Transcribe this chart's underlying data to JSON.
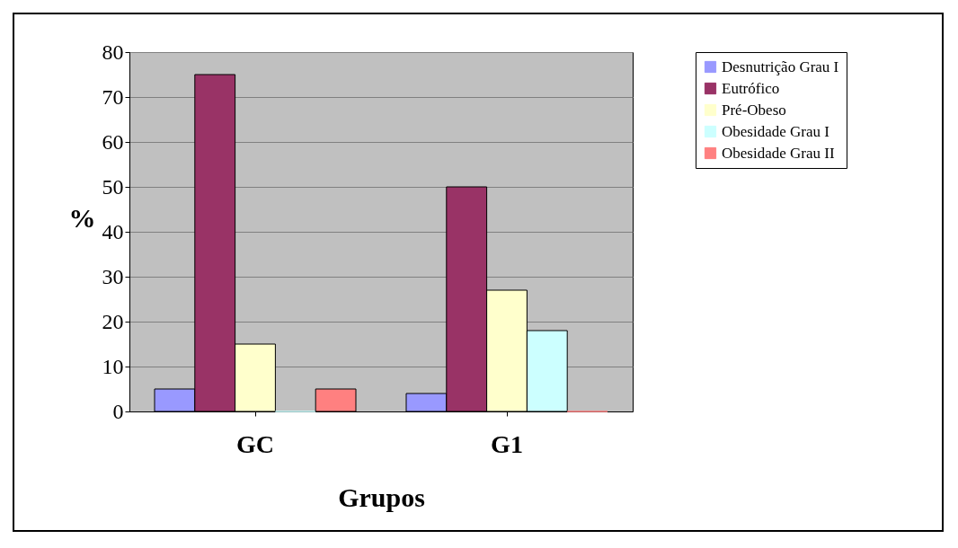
{
  "chart_data": {
    "type": "bar",
    "categories": [
      "GC",
      "G1"
    ],
    "xlabel": "Grupos",
    "ylabel": "%",
    "series": [
      {
        "name": "Desnutrição Grau I",
        "color": "#9999ff",
        "values": [
          5,
          4
        ]
      },
      {
        "name": "Eutrófico",
        "color": "#993366",
        "values": [
          75,
          50
        ]
      },
      {
        "name": "Pré-Obeso",
        "color": "#ffffcc",
        "values": [
          15,
          27
        ]
      },
      {
        "name": "Obesidade Grau I",
        "color": "#ccffff",
        "values": [
          0,
          18
        ]
      },
      {
        "name": "Obesidade Grau II",
        "color": "#ff8080",
        "values": [
          5,
          0
        ]
      }
    ],
    "ylim": [
      0,
      80
    ],
    "yticks": [
      0,
      10,
      20,
      30,
      40,
      50,
      60,
      70,
      80
    ],
    "grid": "y",
    "legend": "right"
  }
}
